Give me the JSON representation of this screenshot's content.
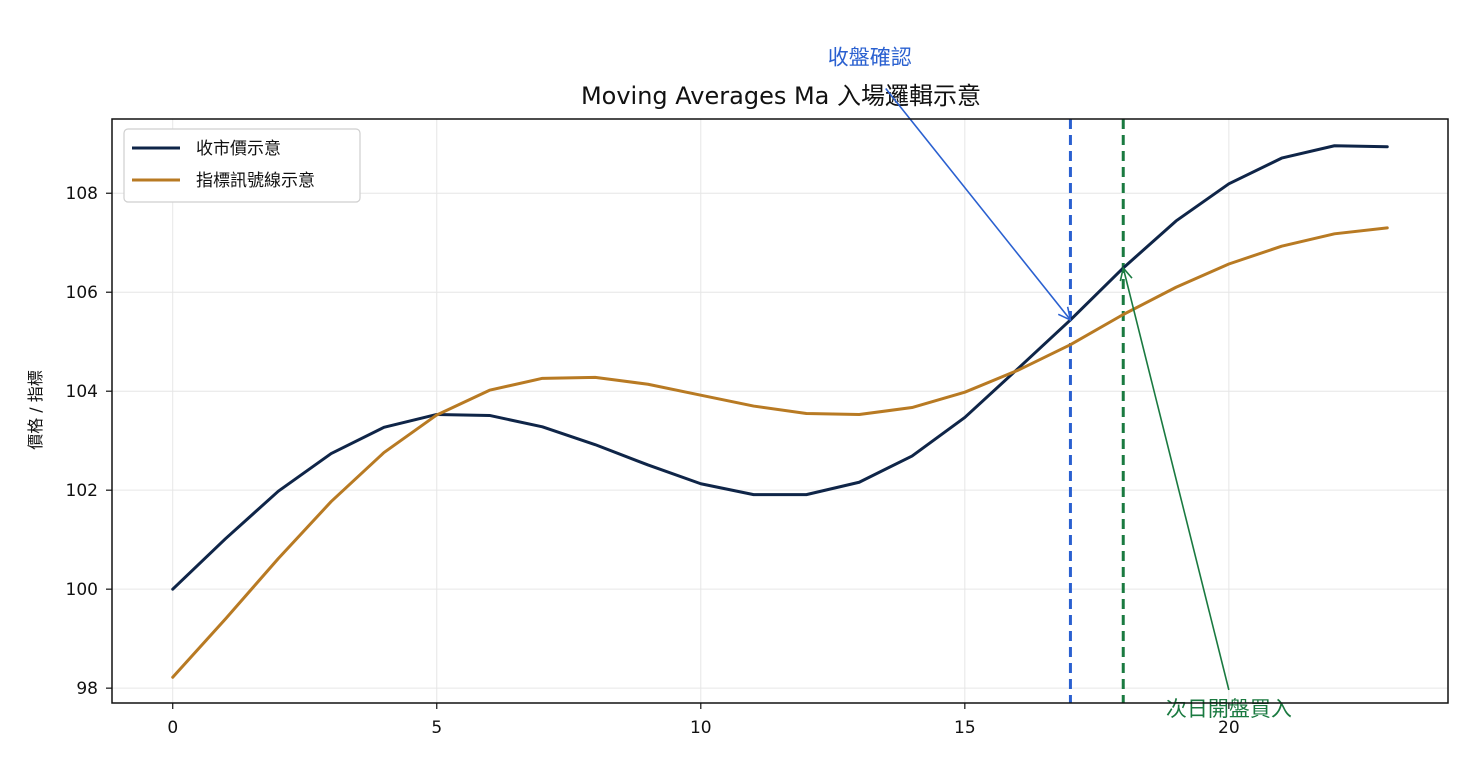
{
  "chart_data": {
    "type": "line",
    "title": "Moving Averages Ma 入場邏輯示意",
    "xlabel": "",
    "ylabel": "價格 / 指標",
    "xlim": [
      -1.15,
      24.15
    ],
    "ylim": [
      97.7,
      109.5
    ],
    "x_ticks": [
      0,
      5,
      10,
      15,
      20
    ],
    "y_ticks": [
      98,
      100,
      102,
      104,
      106,
      108
    ],
    "grid": true,
    "legend_position": "top-left",
    "x": [
      0,
      1,
      2,
      3,
      4,
      5,
      6,
      7,
      8,
      9,
      10,
      11,
      12,
      13,
      14,
      15,
      16,
      17,
      18,
      19,
      20,
      21,
      22,
      23
    ],
    "series": [
      {
        "name": "收市價示意",
        "color": "#0f2548",
        "values": [
          100.0,
          101.02,
          101.98,
          102.74,
          103.27,
          103.53,
          103.51,
          103.28,
          102.92,
          102.51,
          102.13,
          101.91,
          101.91,
          102.16,
          102.69,
          103.47,
          104.45,
          105.44,
          106.49,
          107.44,
          108.19,
          108.71,
          108.96,
          108.94
        ],
        "line_width": 3
      },
      {
        "name": "指標訊號線示意",
        "color": "#b87a23",
        "values": [
          98.22,
          99.4,
          100.62,
          101.77,
          102.76,
          103.52,
          104.02,
          104.26,
          104.28,
          104.14,
          103.92,
          103.7,
          103.55,
          103.53,
          103.67,
          103.98,
          104.42,
          104.94,
          105.55,
          106.1,
          106.57,
          106.93,
          107.18,
          107.3
        ],
        "line_width": 3
      }
    ],
    "vlines": [
      {
        "x": 17,
        "color": "#2a60d0",
        "style": "dashed"
      },
      {
        "x": 18,
        "color": "#1a7a40",
        "style": "dashed"
      }
    ],
    "annotations": [
      {
        "text": "收盤確認",
        "color": "#2a60d0",
        "point_x": 17,
        "point_y": 105.44,
        "text_x": 13.2,
        "text_y": 110.6
      },
      {
        "text": "次日開盤買入",
        "color": "#1a7a40",
        "point_x": 18,
        "point_y": 106.49,
        "text_x": 20,
        "text_y": 97.6
      }
    ]
  }
}
